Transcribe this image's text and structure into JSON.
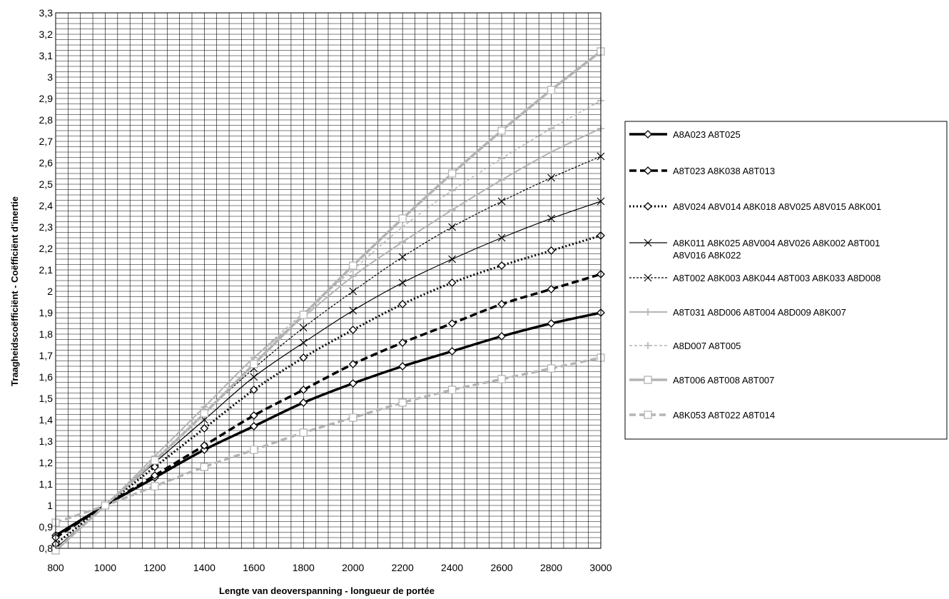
{
  "chart_data": {
    "type": "line",
    "title": "",
    "xlabel": "Lengte van deoverspanning - longueur de portée",
    "ylabel": "Traagheidscoëfficiënt - Coëfficiënt d'inertie",
    "xlim": [
      800,
      3000
    ],
    "ylim": [
      0.8,
      3.3
    ],
    "x_ticks": [
      "800",
      "1000",
      "1200",
      "1400",
      "1600",
      "1800",
      "2000",
      "2200",
      "2400",
      "2600",
      "2800",
      "3000"
    ],
    "y_ticks": [
      "0,8",
      "0,9",
      "1",
      "1,1",
      "1,2",
      "1,3",
      "1,4",
      "1,5",
      "1,6",
      "1,7",
      "1,8",
      "1,9",
      "2",
      "2,1",
      "2,2",
      "2,3",
      "2,4",
      "2,5",
      "2,6",
      "2,7",
      "2,8",
      "2,9",
      "3",
      "3,1",
      "3,2",
      "3,3"
    ],
    "grid": true,
    "legend_position": "right",
    "x": [
      800,
      1000,
      1200,
      1400,
      1600,
      1800,
      2000,
      2200,
      2400,
      2600,
      2800,
      3000
    ],
    "series": [
      {
        "name": "A8A023 A8T025",
        "values": [
          0.86,
          1.0,
          1.13,
          1.26,
          1.37,
          1.48,
          1.57,
          1.65,
          1.72,
          1.79,
          1.85,
          1.9
        ],
        "color": "#000000",
        "width": 3.5,
        "dash": "",
        "marker": "diamond"
      },
      {
        "name": "A8T023 A8K038 A8T013",
        "values": [
          0.85,
          1.0,
          1.14,
          1.28,
          1.42,
          1.54,
          1.66,
          1.76,
          1.85,
          1.94,
          2.01,
          2.08
        ],
        "color": "#000000",
        "width": 3.5,
        "dash": "10,5",
        "marker": "diamond"
      },
      {
        "name": "A8V024 A8V014 A8K018 A8V025 A8V015 A8K001",
        "values": [
          0.82,
          1.0,
          1.18,
          1.36,
          1.54,
          1.69,
          1.82,
          1.94,
          2.04,
          2.12,
          2.19,
          2.26
        ],
        "color": "#000000",
        "width": 3,
        "dash": "2,3",
        "marker": "diamond"
      },
      {
        "name": "A8K011 A8K025 A8V004 A8V026 A8K002 A8T001 A8V016 A8K022",
        "values": [
          0.8,
          1.0,
          1.2,
          1.4,
          1.6,
          1.76,
          1.91,
          2.04,
          2.15,
          2.25,
          2.34,
          2.42
        ],
        "color": "#000000",
        "width": 1.2,
        "dash": "",
        "marker": "cross"
      },
      {
        "name": "A8T002 A8K003 A8K044 A8T003 A8K033 A8D008",
        "values": [
          0.79,
          1.0,
          1.21,
          1.43,
          1.64,
          1.83,
          2.0,
          2.16,
          2.3,
          2.42,
          2.53,
          2.63
        ],
        "color": "#000000",
        "width": 1.2,
        "dash": "3,2",
        "marker": "cross"
      },
      {
        "name": "A8T031 A8D006 A8T004 A8D009 A8K007",
        "values": [
          0.79,
          1.0,
          1.23,
          1.46,
          1.69,
          1.88,
          2.07,
          2.23,
          2.38,
          2.52,
          2.65,
          2.76
        ],
        "color": "#b4b4b4",
        "width": 2,
        "dash": "",
        "marker": "plus"
      },
      {
        "name": "A8D007 A8T005",
        "values": [
          0.79,
          1.0,
          1.23,
          1.46,
          1.69,
          1.9,
          2.1,
          2.3,
          2.47,
          2.62,
          2.76,
          2.89
        ],
        "color": "#b4b4b4",
        "width": 1.5,
        "dash": "4,3",
        "marker": "plus"
      },
      {
        "name": "A8T006 A8T008 A8T007",
        "values": [
          0.79,
          1.0,
          1.21,
          1.43,
          1.66,
          1.89,
          2.12,
          2.34,
          2.55,
          2.75,
          2.94,
          3.12
        ],
        "color": "#b4b4b4",
        "width": 3.5,
        "dash": "",
        "marker": "square"
      },
      {
        "name": "A8K053 A8T022 A8T014",
        "values": [
          0.92,
          1.0,
          1.09,
          1.18,
          1.26,
          1.34,
          1.41,
          1.48,
          1.54,
          1.59,
          1.64,
          1.69
        ],
        "color": "#b4b4b4",
        "width": 3.5,
        "dash": "9,5",
        "marker": "square"
      }
    ]
  }
}
